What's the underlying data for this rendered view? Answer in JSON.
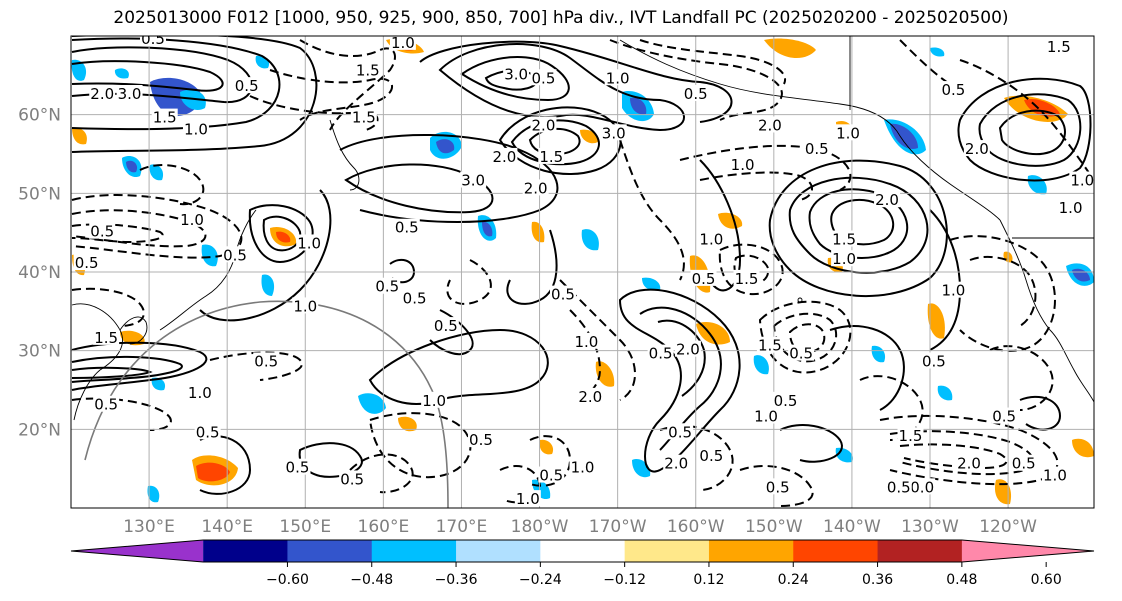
{
  "title": "2025013000 F012 [1000, 950, 925, 900, 850, 700] hPa div., IVT Landfall PC (2025020200 - 2025020500)",
  "map": {
    "lat_labels": [
      "60°N",
      "50°N",
      "40°N",
      "30°N",
      "20°N"
    ],
    "lat_values": [
      60,
      50,
      40,
      30,
      20
    ],
    "lon_labels": [
      "130°E",
      "140°E",
      "150°E",
      "160°E",
      "170°E",
      "180°W",
      "170°W",
      "160°W",
      "150°W",
      "140°W",
      "130°W",
      "120°W"
    ],
    "lon_values": [
      130,
      140,
      150,
      160,
      170,
      180,
      190,
      200,
      210,
      220,
      230,
      240
    ],
    "extent": {
      "lon": [
        120,
        251
      ],
      "lat": [
        10,
        70
      ]
    }
  },
  "colorbar": {
    "ticks": [
      "−0.60",
      "−0.48",
      "−0.36",
      "−0.24",
      "−0.12",
      "0.12",
      "0.24",
      "0.36",
      "0.48",
      "0.60"
    ],
    "tick_values": [
      -0.6,
      -0.48,
      -0.36,
      -0.24,
      -0.12,
      0.12,
      0.24,
      0.36,
      0.48,
      0.6
    ],
    "colors": [
      "#9932cc",
      "#00008b",
      "#3355cc",
      "#00bfff",
      "#b0e0ff",
      "#ffffff",
      "#ffe88a",
      "#ffa500",
      "#ff4500",
      "#b22222",
      "#ff88aa"
    ]
  },
  "contour_labels": [
    {
      "text": "2.0",
      "lon": 124,
      "lat": 62.5
    },
    {
      "text": "3.0",
      "lon": 127.5,
      "lat": 62.5
    },
    {
      "text": "1.5",
      "lon": 132,
      "lat": 59.5
    },
    {
      "text": "1.0",
      "lon": 136,
      "lat": 58
    },
    {
      "text": "0.5",
      "lon": 142.5,
      "lat": 63.5
    },
    {
      "text": "1.5",
      "lon": 157.5,
      "lat": 59.5
    },
    {
      "text": "0.5",
      "lon": 130.5,
      "lat": 69.5
    },
    {
      "text": "1.0",
      "lon": 162.5,
      "lat": 69
    },
    {
      "text": "1.5",
      "lon": 158,
      "lat": 65.5
    },
    {
      "text": "3.0",
      "lon": 177,
      "lat": 65
    },
    {
      "text": "0.5",
      "lon": 180.5,
      "lat": 64.5
    },
    {
      "text": "2.0",
      "lon": 180.5,
      "lat": 58.5
    },
    {
      "text": "1.5",
      "lon": 181.5,
      "lat": 54.5
    },
    {
      "text": "3.0",
      "lon": 189.5,
      "lat": 57.5
    },
    {
      "text": "2.0",
      "lon": 175.5,
      "lat": 54.5
    },
    {
      "text": "3.0",
      "lon": 171.5,
      "lat": 51.5
    },
    {
      "text": "2.0",
      "lon": 179.5,
      "lat": 50.5
    },
    {
      "text": "1.0",
      "lon": 190,
      "lat": 64.5
    },
    {
      "text": "0.5",
      "lon": 200,
      "lat": 62.5
    },
    {
      "text": "2.0",
      "lon": 209.5,
      "lat": 58.5
    },
    {
      "text": "1.0",
      "lon": 206,
      "lat": 53.5
    },
    {
      "text": "0.5",
      "lon": 215.5,
      "lat": 55.5
    },
    {
      "text": "1.0",
      "lon": 219.5,
      "lat": 57.5
    },
    {
      "text": "2.0",
      "lon": 224.5,
      "lat": 49
    },
    {
      "text": "1.5",
      "lon": 219,
      "lat": 44
    },
    {
      "text": "1.0",
      "lon": 219,
      "lat": 41.5
    },
    {
      "text": "1.5",
      "lon": 246.5,
      "lat": 68.5
    },
    {
      "text": "0.5",
      "lon": 233,
      "lat": 63
    },
    {
      "text": "2.0",
      "lon": 236,
      "lat": 55.5
    },
    {
      "text": "1.0",
      "lon": 249.5,
      "lat": 51.5
    },
    {
      "text": "1.0",
      "lon": 248,
      "lat": 48
    },
    {
      "text": "1.0",
      "lon": 233,
      "lat": 37.5
    },
    {
      "text": "0.5",
      "lon": 141,
      "lat": 42
    },
    {
      "text": "1.0",
      "lon": 150.5,
      "lat": 43.5
    },
    {
      "text": "0.5",
      "lon": 164,
      "lat": 36.5
    },
    {
      "text": "0.5",
      "lon": 163,
      "lat": 45.5
    },
    {
      "text": "1.0",
      "lon": 135.5,
      "lat": 46.5
    },
    {
      "text": "0.5",
      "lon": 160.5,
      "lat": 38
    },
    {
      "text": "1.0",
      "lon": 150,
      "lat": 35.5
    },
    {
      "text": "0.5",
      "lon": 168,
      "lat": 33
    },
    {
      "text": "0.5",
      "lon": 145,
      "lat": 28.5
    },
    {
      "text": "1.0",
      "lon": 136.5,
      "lat": 24.5
    },
    {
      "text": "0.5",
      "lon": 137.5,
      "lat": 19.5
    },
    {
      "text": "0.5",
      "lon": 149,
      "lat": 15
    },
    {
      "text": "0.5",
      "lon": 156,
      "lat": 13.5
    },
    {
      "text": "1.0",
      "lon": 166.5,
      "lat": 23.5
    },
    {
      "text": "0.5",
      "lon": 172.5,
      "lat": 18.5
    },
    {
      "text": "1.0",
      "lon": 178.5,
      "lat": 11
    },
    {
      "text": "0.5",
      "lon": 181.5,
      "lat": 14
    },
    {
      "text": "1.0",
      "lon": 185.5,
      "lat": 15
    },
    {
      "text": "0.5",
      "lon": 183,
      "lat": 37
    },
    {
      "text": "1.0",
      "lon": 186,
      "lat": 31
    },
    {
      "text": "2.0",
      "lon": 199,
      "lat": 30
    },
    {
      "text": "2.0",
      "lon": 186.5,
      "lat": 24
    },
    {
      "text": "2.0",
      "lon": 197.5,
      "lat": 15.5
    },
    {
      "text": "0.5",
      "lon": 195.5,
      "lat": 29.5
    },
    {
      "text": "0.5",
      "lon": 198,
      "lat": 19.5
    },
    {
      "text": "0.5",
      "lon": 202,
      "lat": 16.5
    },
    {
      "text": "0.5",
      "lon": 201,
      "lat": 39
    },
    {
      "text": "1.0",
      "lon": 202,
      "lat": 44
    },
    {
      "text": "1.5",
      "lon": 206.5,
      "lat": 39
    },
    {
      "text": "1.5",
      "lon": 209.5,
      "lat": 30.5
    },
    {
      "text": "0.5",
      "lon": 213.5,
      "lat": 29.5
    },
    {
      "text": "1.0",
      "lon": 209,
      "lat": 21.5
    },
    {
      "text": "0.5",
      "lon": 211.5,
      "lat": 23.5
    },
    {
      "text": "0.5",
      "lon": 210.5,
      "lat": 12.5
    },
    {
      "text": "1.5",
      "lon": 227.5,
      "lat": 19
    },
    {
      "text": "2.0",
      "lon": 235,
      "lat": 15.5
    },
    {
      "text": "0.0",
      "lon": 229,
      "lat": 12.5
    },
    {
      "text": "0.5",
      "lon": 226,
      "lat": 12.5
    },
    {
      "text": "0.5",
      "lon": 239.5,
      "lat": 21.5
    },
    {
      "text": "0.5",
      "lon": 242,
      "lat": 15.5
    },
    {
      "text": "1.0",
      "lon": 246,
      "lat": 14
    },
    {
      "text": "0.5",
      "lon": 230.5,
      "lat": 28.5
    },
    {
      "text": "0.5",
      "lon": 124.5,
      "lat": 23
    },
    {
      "text": "1.5",
      "lon": 124.5,
      "lat": 31.5
    },
    {
      "text": "0.5",
      "lon": 122,
      "lat": 41
    },
    {
      "text": "0.5",
      "lon": 124,
      "lat": 45
    }
  ]
}
